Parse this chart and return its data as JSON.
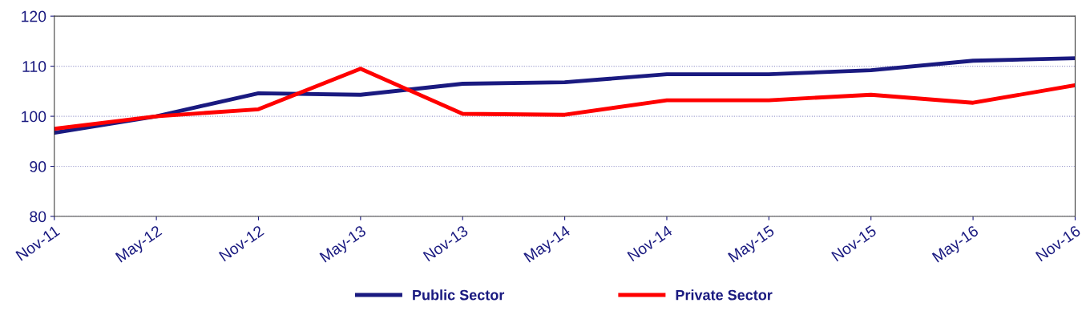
{
  "chart_data": {
    "type": "line",
    "categories": [
      "Nov-11",
      "May-12",
      "Nov-12",
      "May-13",
      "Nov-13",
      "May-14",
      "Nov-14",
      "May-15",
      "Nov-15",
      "May-16",
      "Nov-16"
    ],
    "series": [
      {
        "name": "Public Sector",
        "color": "#1a1a80",
        "values": [
          96.7,
          100,
          104.6,
          104.3,
          106.5,
          106.8,
          108.4,
          108.4,
          109.2,
          111.1,
          111.6
        ]
      },
      {
        "name": "Private Sector",
        "color": "#ff0000",
        "values": [
          97.5,
          100,
          101.4,
          109.5,
          100.5,
          100.3,
          103.2,
          103.2,
          104.3,
          102.7,
          106.2
        ]
      }
    ],
    "ylim": [
      80,
      120
    ],
    "yticks": [
      80,
      90,
      100,
      110,
      120
    ],
    "grid": "y",
    "legend": "bottom",
    "marker": "none",
    "line_style": "solid"
  }
}
